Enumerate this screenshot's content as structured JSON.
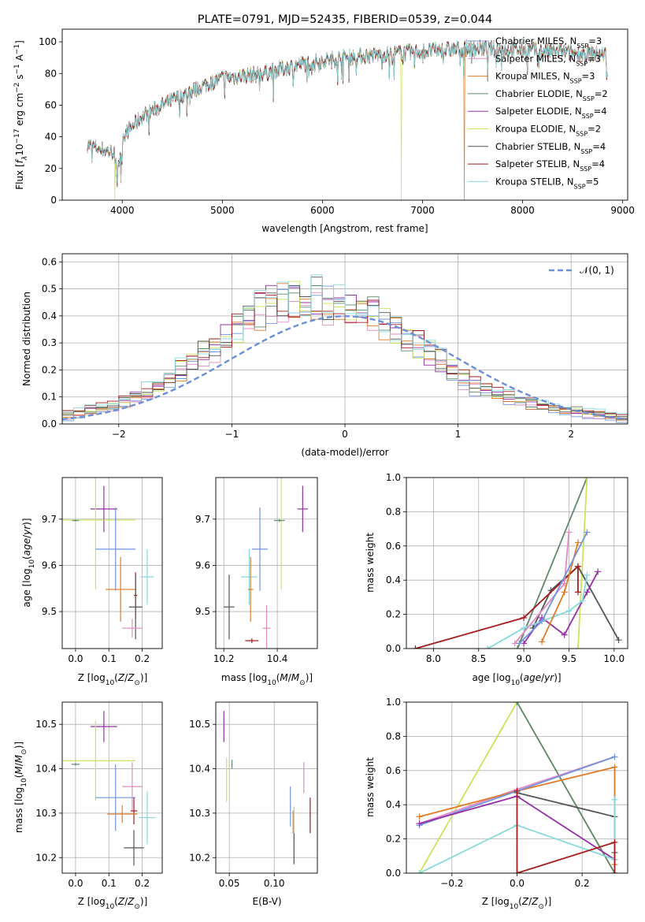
{
  "colors": {
    "Chabrier MILES": "#7095e0",
    "Salpeter MILES": "#e38ac4",
    "Kroupa MILES": "#e07b27",
    "Chabrier ELODIE": "#5e8a6c",
    "Salpeter ELODIE": "#962ea8",
    "Kroupa ELODIE": "#cbe35e",
    "Chabrier STELIB": "#555555",
    "Salpeter STELIB": "#a61c1c",
    "Kroupa STELIB": "#87d9dc"
  },
  "chart_data": [
    {
      "type": "line",
      "title": "PLATE=0791, MJD=52435, FIBERID=0539, z=0.044",
      "xlabel": "wavelength [Angstrom, rest frame]",
      "ylabel": "Flux [f_λ 10^-17 erg cm^-2 s^-1 A^-1]",
      "xlim": [
        3400,
        9050
      ],
      "ylim": [
        0,
        108
      ],
      "xticks": [
        4000,
        5000,
        6000,
        7000,
        8000,
        9000
      ],
      "yticks": [
        0,
        20,
        40,
        60,
        80,
        100
      ],
      "grid": false,
      "legend": "top-right",
      "spectrum_wavelength_range": [
        3650,
        8850
      ],
      "spectrum_anchors": [
        [
          3650,
          35
        ],
        [
          3900,
          30
        ],
        [
          4000,
          40
        ],
        [
          4200,
          53
        ],
        [
          4400,
          60
        ],
        [
          4800,
          72
        ],
        [
          5000,
          77
        ],
        [
          5400,
          80
        ],
        [
          5800,
          86
        ],
        [
          6200,
          90
        ],
        [
          6600,
          92
        ],
        [
          7000,
          94
        ],
        [
          7500,
          96
        ],
        [
          8000,
          95
        ],
        [
          8500,
          93
        ],
        [
          8850,
          92
        ]
      ],
      "series": [
        {
          "name": "Chabrier MILES",
          "nssp": "3"
        },
        {
          "name": "Salpeter MILES",
          "nssp": "3"
        },
        {
          "name": "Kroupa MILES",
          "nssp": "3"
        },
        {
          "name": "Chabrier ELODIE",
          "nssp": "2"
        },
        {
          "name": "Salpeter ELODIE",
          "nssp": "4"
        },
        {
          "name": "Kroupa ELODIE",
          "nssp": "2"
        },
        {
          "name": "Chabrier STELIB",
          "nssp": "4"
        },
        {
          "name": "Salpeter STELIB",
          "nssp": "4"
        },
        {
          "name": "Kroupa STELIB",
          "nssp": "5"
        }
      ],
      "drop_features": [
        {
          "series": "Kroupa ELODIE",
          "wavelength": 3925
        },
        {
          "series": "Kroupa ELODIE",
          "wavelength": 6790
        },
        {
          "series": "Kroupa MILES",
          "wavelength": 7420
        }
      ]
    },
    {
      "type": "bar",
      "xlabel": "(data-model)/error",
      "ylabel": "Normed distribution",
      "xlim": [
        -2.5,
        2.5
      ],
      "ylim": [
        0,
        0.63
      ],
      "xticks": [
        -2,
        -1,
        0,
        1,
        2
      ],
      "yticks": [
        0.0,
        0.1,
        0.2,
        0.3,
        0.4,
        0.5,
        0.6
      ],
      "grid": true,
      "legend": "top-right",
      "bin_width": 0.1,
      "histogram_envelope": [
        [
          -2.5,
          0.03
        ],
        [
          -2.0,
          0.07
        ],
        [
          -1.6,
          0.15
        ],
        [
          -1.3,
          0.25
        ],
        [
          -1.0,
          0.33
        ],
        [
          -0.7,
          0.43
        ],
        [
          -0.4,
          0.47
        ],
        [
          -0.1,
          0.45
        ],
        [
          0.2,
          0.42
        ],
        [
          0.5,
          0.33
        ],
        [
          0.8,
          0.25
        ],
        [
          1.1,
          0.15
        ],
        [
          1.4,
          0.1
        ],
        [
          1.8,
          0.06
        ],
        [
          2.5,
          0.02
        ]
      ],
      "reference_curve": {
        "name": "𝒩(0, 1)",
        "mean": 0,
        "sigma": 1
      }
    },
    {
      "type": "scatter",
      "xlabel": "Z [log10(Z/Z⊙)]",
      "ylabel": "age  [log10(age/yr)]",
      "xlim": [
        -0.04,
        0.26
      ],
      "ylim": [
        9.42,
        9.79
      ],
      "xticks": [
        0.0,
        0.1,
        0.2
      ],
      "yticks": [
        9.5,
        9.6,
        9.7
      ],
      "grid": true,
      "points": [
        {
          "series": "Salpeter ELODIE",
          "x": 0.085,
          "y": 9.722,
          "xerr": 0.04,
          "yerr": 0.05
        },
        {
          "series": "Kroupa ELODIE",
          "x": 0.06,
          "y": 9.698,
          "xerr": 0.12,
          "yerr": 0.15
        },
        {
          "series": "Chabrier ELODIE",
          "x": 0.0,
          "y": 9.697,
          "xerr": 0.01,
          "yerr": 0.002
        },
        {
          "series": "Chabrier MILES",
          "x": 0.12,
          "y": 9.635,
          "xerr": 0.06,
          "yerr": 0.09
        },
        {
          "series": "Kroupa STELIB",
          "x": 0.215,
          "y": 9.575,
          "xerr": 0.02,
          "yerr": 0.06
        },
        {
          "series": "Kroupa MILES",
          "x": 0.135,
          "y": 9.548,
          "xerr": 0.045,
          "yerr": 0.07
        },
        {
          "series": "Salpeter STELIB",
          "x": 0.18,
          "y": 9.535,
          "xerr": 0.005,
          "yerr": 0.05
        },
        {
          "series": "Chabrier STELIB",
          "x": 0.18,
          "y": 9.51,
          "xerr": 0.02,
          "yerr": 0.07
        },
        {
          "series": "Salpeter MILES",
          "x": 0.17,
          "y": 9.464,
          "xerr": 0.03,
          "yerr": 0.02
        }
      ]
    },
    {
      "type": "scatter",
      "xlabel": "mass [log10(M/M⊙)]",
      "ylabel": "",
      "xlim": [
        10.17,
        10.55
      ],
      "ylim": [
        9.42,
        9.79
      ],
      "xticks": [
        10.2,
        10.4
      ],
      "yticks": [
        9.5,
        9.6,
        9.7
      ],
      "grid": true,
      "points": [
        {
          "series": "Salpeter ELODIE",
          "x": 10.495,
          "y": 9.722,
          "xerr": 0.02,
          "yerr": 0.05
        },
        {
          "series": "Kroupa ELODIE",
          "x": 10.415,
          "y": 9.698,
          "xerr": 0.002,
          "yerr": 0.15
        },
        {
          "series": "Chabrier ELODIE",
          "x": 10.408,
          "y": 9.697,
          "xerr": 0.02,
          "yerr": 0.003
        },
        {
          "series": "Chabrier MILES",
          "x": 10.335,
          "y": 9.635,
          "xerr": 0.03,
          "yerr": 0.09
        },
        {
          "series": "Kroupa STELIB",
          "x": 10.295,
          "y": 9.575,
          "xerr": 0.03,
          "yerr": 0.06
        },
        {
          "series": "Kroupa MILES",
          "x": 10.3,
          "y": 9.548,
          "xerr": 0.01,
          "yerr": 0.07
        },
        {
          "series": "Salpeter STELIB",
          "x": 10.305,
          "y": 9.437,
          "xerr": 0.025,
          "yerr": 0.005
        },
        {
          "series": "Chabrier STELIB",
          "x": 10.22,
          "y": 9.51,
          "xerr": 0.02,
          "yerr": 0.07
        },
        {
          "series": "Salpeter MILES",
          "x": 10.36,
          "y": 9.464,
          "xerr": 0.015,
          "yerr": 0.05
        }
      ]
    },
    {
      "type": "line",
      "xlabel": "age  [log10(age/yr)]",
      "ylabel": "mass weight",
      "xlim": [
        7.7,
        10.15
      ],
      "ylim": [
        0,
        1.0
      ],
      "xticks": [
        8.0,
        8.5,
        9.0,
        9.5,
        10.0
      ],
      "yticks": [
        0.0,
        0.2,
        0.4,
        0.6,
        0.8,
        1.0
      ],
      "grid": true,
      "series": [
        {
          "name": "Chabrier ELODIE",
          "x": [
            8.93,
            9.7
          ],
          "y": [
            0.0,
            1.0
          ]
        },
        {
          "name": "Kroupa ELODIE",
          "x": [
            9.6,
            9.7
          ],
          "y": [
            0.0,
            1.0
          ]
        },
        {
          "name": "Chabrier STELIB",
          "x": [
            9.1,
            9.3,
            9.6,
            10.05
          ],
          "y": [
            0.12,
            0.34,
            0.48,
            0.05
          ]
        },
        {
          "name": "Salpeter STELIB",
          "x": [
            7.8,
            9.0,
            9.6,
            9.6
          ],
          "y": [
            0.0,
            0.18,
            0.48,
            0.33
          ]
        },
        {
          "name": "Salpeter ELODIE",
          "x": [
            9.0,
            9.2,
            9.45,
            9.7,
            9.82
          ],
          "y": [
            0.03,
            0.18,
            0.08,
            0.33,
            0.45
          ]
        },
        {
          "name": "Kroupa STELIB",
          "x": [
            8.6,
            9.0,
            9.5,
            9.65,
            9.7
          ],
          "y": [
            0.0,
            0.12,
            0.22,
            0.28,
            0.43
          ]
        },
        {
          "name": "Salpeter MILES",
          "x": [
            8.9,
            9.45,
            9.5
          ],
          "y": [
            0.03,
            0.38,
            0.68
          ]
        },
        {
          "name": "Kroupa MILES",
          "x": [
            9.2,
            9.45,
            9.6
          ],
          "y": [
            0.04,
            0.33,
            0.62
          ]
        },
        {
          "name": "Chabrier MILES",
          "x": [
            8.95,
            9.2,
            9.7
          ],
          "y": [
            0.03,
            0.16,
            0.68
          ]
        }
      ]
    },
    {
      "type": "scatter",
      "xlabel": "Z [log10(Z/Z⊙)]",
      "ylabel": "mass [log10(M/M⊙)]",
      "xlim": [
        -0.04,
        0.26
      ],
      "ylim": [
        10.165,
        10.55
      ],
      "xticks": [
        0.0,
        0.1,
        0.2
      ],
      "yticks": [
        10.2,
        10.3,
        10.4,
        10.5
      ],
      "grid": true,
      "points": [
        {
          "series": "Salpeter ELODIE",
          "x": 0.085,
          "y": 10.495,
          "xerr": 0.04,
          "yerr": 0.035
        },
        {
          "series": "Kroupa ELODIE",
          "x": 0.06,
          "y": 10.418,
          "xerr": 0.12,
          "yerr": 0.09
        },
        {
          "series": "Chabrier ELODIE",
          "x": 0.0,
          "y": 10.41,
          "xerr": 0.012,
          "yerr": 0.003
        },
        {
          "series": "Salpeter MILES",
          "x": 0.17,
          "y": 10.36,
          "xerr": 0.03,
          "yerr": 0.055
        },
        {
          "series": "Chabrier MILES",
          "x": 0.12,
          "y": 10.335,
          "xerr": 0.06,
          "yerr": 0.075
        },
        {
          "series": "Salpeter STELIB",
          "x": 0.175,
          "y": 10.305,
          "xerr": 0.01,
          "yerr": 0.03
        },
        {
          "series": "Kroupa MILES",
          "x": 0.14,
          "y": 10.298,
          "xerr": 0.045,
          "yerr": 0.02
        },
        {
          "series": "Kroupa STELIB",
          "x": 0.215,
          "y": 10.29,
          "xerr": 0.025,
          "yerr": 0.06
        },
        {
          "series": "Chabrier STELIB",
          "x": 0.175,
          "y": 10.222,
          "xerr": 0.03,
          "yerr": 0.04
        }
      ]
    },
    {
      "type": "scatter",
      "xlabel": "E(B-V)",
      "ylabel": "",
      "xlim": [
        0.035,
        0.148
      ],
      "ylim": [
        10.165,
        10.55
      ],
      "xticks": [
        0.05,
        0.1
      ],
      "yticks": [
        10.2,
        10.3,
        10.4,
        10.5
      ],
      "grid": true,
      "points": [
        {
          "series": "Salpeter ELODIE",
          "x": 0.044,
          "y": 10.495,
          "xerr": 0.0005,
          "yerr": 0.035
        },
        {
          "series": "Kroupa ELODIE",
          "x": 0.047,
          "y": 10.375,
          "xerr": 0.0005,
          "yerr": 0.05
        },
        {
          "series": "Chabrier ELODIE",
          "x": 0.053,
          "y": 10.41,
          "xerr": 0.0005,
          "yerr": 0.01
        },
        {
          "series": "Salpeter MILES",
          "x": 0.133,
          "y": 10.38,
          "xerr": 0.0005,
          "yerr": 0.035
        },
        {
          "series": "Chabrier MILES",
          "x": 0.118,
          "y": 10.315,
          "xerr": 0.0005,
          "yerr": 0.045
        },
        {
          "series": "Kroupa MILES",
          "x": 0.121,
          "y": 10.28,
          "xerr": 0.0005,
          "yerr": 0.025
        },
        {
          "series": "Salpeter STELIB",
          "x": 0.14,
          "y": 10.295,
          "xerr": 0.0005,
          "yerr": 0.04
        },
        {
          "series": "Kroupa STELIB",
          "x": 0.122,
          "y": 10.275,
          "xerr": 0.0005,
          "yerr": 0.04
        },
        {
          "series": "Chabrier STELIB",
          "x": 0.122,
          "y": 10.22,
          "xerr": 0.0005,
          "yerr": 0.035
        }
      ]
    },
    {
      "type": "line",
      "xlabel": "Z [log10(Z/Z⊙)]",
      "ylabel": "mass weight",
      "xlim": [
        -0.34,
        0.34
      ],
      "ylim": [
        0,
        1.0
      ],
      "xticks": [
        -0.2,
        0.0,
        0.2
      ],
      "yticks": [
        0.0,
        0.2,
        0.4,
        0.6,
        0.8,
        1.0
      ],
      "grid": true,
      "series": [
        {
          "name": "Kroupa ELODIE",
          "x": [
            -0.3,
            0.0,
            0.3
          ],
          "y": [
            0.0,
            1.0,
            0.0
          ]
        },
        {
          "name": "Chabrier ELODIE",
          "x": [
            0.0,
            0.3
          ],
          "y": [
            1.0,
            0.0
          ]
        },
        {
          "name": "Salpeter MILES",
          "x": [
            -0.3,
            0.0,
            0.3
          ],
          "y": [
            0.29,
            0.49,
            0.68
          ]
        },
        {
          "name": "Kroupa MILES",
          "x": [
            -0.3,
            0.0,
            0.3,
            0.3
          ],
          "y": [
            0.33,
            0.48,
            0.62,
            0.05
          ]
        },
        {
          "name": "Chabrier MILES",
          "x": [
            -0.3,
            0.0,
            0.3
          ],
          "y": [
            0.28,
            0.48,
            0.68
          ]
        },
        {
          "name": "Salpeter ELODIE",
          "x": [
            -0.3,
            0.0,
            0.3
          ],
          "y": [
            0.29,
            0.45,
            0.08
          ]
        },
        {
          "name": "Chabrier STELIB",
          "x": [
            0.0,
            0.3,
            0.3
          ],
          "y": [
            0.47,
            0.33,
            0.12
          ]
        },
        {
          "name": "Kroupa STELIB",
          "x": [
            -0.3,
            0.0,
            0.3,
            0.3
          ],
          "y": [
            0.0,
            0.28,
            0.08,
            0.43
          ]
        },
        {
          "name": "Salpeter STELIB",
          "x": [
            0.0,
            0.0,
            0.3,
            0.3
          ],
          "y": [
            0.48,
            0.0,
            0.18,
            0.0
          ]
        }
      ]
    }
  ]
}
